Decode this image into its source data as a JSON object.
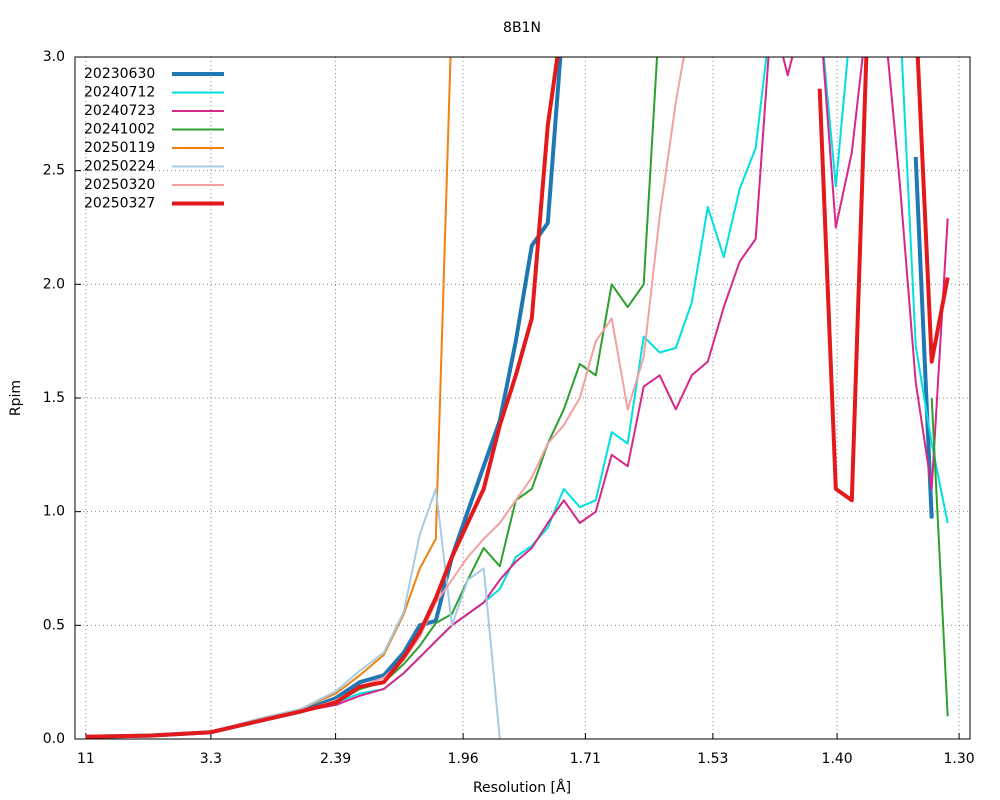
{
  "chart_data": {
    "type": "line",
    "title": "8B1N",
    "x_label": "Resolution [Å]",
    "y_label": "Rpim",
    "x": [
      0.0083,
      0.051,
      0.0918,
      0.1245,
      0.1512,
      0.1753,
      0.1913,
      0.2073,
      0.2207,
      0.2314,
      0.2421,
      0.2528,
      0.2634,
      0.2741,
      0.2848,
      0.2955,
      0.3062,
      0.3169,
      0.3276,
      0.3383,
      0.349,
      0.3596,
      0.3703,
      0.381,
      0.3917,
      0.4024,
      0.4131,
      0.4238,
      0.4345,
      0.4451,
      0.4558,
      0.4665,
      0.4772,
      0.4879,
      0.4986,
      0.5093,
      0.52,
      0.5307,
      0.5413,
      0.552,
      0.5627,
      0.5734,
      0.5841
    ],
    "xlim": [
      0.001,
      0.599
    ],
    "xticks": [
      {
        "value": 0.00826,
        "label": "11"
      },
      {
        "value": 0.0918,
        "label": "3.3"
      },
      {
        "value": 0.1751,
        "label": "2.39"
      },
      {
        "value": 0.2603,
        "label": "1.96"
      },
      {
        "value": 0.342,
        "label": "1.71"
      },
      {
        "value": 0.4272,
        "label": "1.53"
      },
      {
        "value": 0.5102,
        "label": "1.40"
      },
      {
        "value": 0.5917,
        "label": "1.30"
      }
    ],
    "ylim": [
      0,
      3
    ],
    "yticks": [
      {
        "value": 0,
        "label": "0.0"
      },
      {
        "value": 0.5,
        "label": "0.5"
      },
      {
        "value": 1,
        "label": "1.0"
      },
      {
        "value": 1.5,
        "label": "1.5"
      },
      {
        "value": 2,
        "label": "2.0"
      },
      {
        "value": 2.5,
        "label": "2.5"
      },
      {
        "value": 3,
        "label": "3.0"
      }
    ],
    "grid": true,
    "legend": "top-left",
    "series": [
      {
        "name": "20230630",
        "color": "#1f77b4",
        "width": 4,
        "values": [
          0.01,
          0.015,
          0.03,
          0.08,
          0.12,
          0.18,
          0.25,
          0.28,
          0.38,
          0.5,
          0.52,
          0.8,
          1.0,
          1.2,
          1.4,
          1.75,
          2.17,
          2.27,
          3.2,
          null,
          null,
          null,
          null,
          null,
          null,
          null,
          null,
          null,
          null,
          null,
          null,
          null,
          null,
          null,
          null,
          null,
          null,
          null,
          null,
          null,
          2.56,
          0.97,
          null
        ]
      },
      {
        "name": "20240712",
        "color": "#00e0e0",
        "width": 2,
        "values": [
          0.01,
          0.015,
          0.03,
          0.08,
          0.12,
          0.16,
          0.2,
          0.22,
          0.29,
          0.36,
          0.43,
          0.5,
          0.55,
          0.6,
          0.66,
          0.8,
          0.85,
          0.93,
          1.1,
          1.02,
          1.05,
          1.35,
          1.3,
          1.77,
          1.7,
          1.72,
          1.92,
          2.34,
          2.12,
          2.42,
          2.6,
          3.2,
          3.2,
          3.2,
          3.2,
          2.43,
          3.2,
          3.2,
          3.2,
          3.2,
          1.73,
          1.3,
          0.95
        ]
      },
      {
        "name": "20240723",
        "color": "#d6278a",
        "width": 2,
        "values": [
          0.01,
          0.015,
          0.03,
          0.08,
          0.12,
          0.15,
          0.19,
          0.22,
          0.29,
          0.36,
          0.43,
          0.5,
          0.55,
          0.6,
          0.7,
          0.78,
          0.84,
          0.95,
          1.05,
          0.95,
          1.0,
          1.25,
          1.2,
          1.55,
          1.6,
          1.45,
          1.6,
          1.66,
          1.9,
          2.1,
          2.2,
          3.2,
          2.92,
          3.2,
          3.2,
          2.25,
          2.58,
          3.2,
          3.2,
          2.45,
          1.57,
          1.1,
          2.29
        ]
      },
      {
        "name": "20241002",
        "color": "#2ca02c",
        "width": 2,
        "values": [
          0.01,
          0.015,
          0.03,
          0.08,
          0.12,
          0.16,
          0.22,
          0.25,
          0.33,
          0.41,
          0.51,
          0.55,
          0.7,
          0.84,
          0.76,
          1.05,
          1.1,
          1.3,
          1.45,
          1.65,
          1.6,
          2.0,
          1.9,
          2.0,
          3.2,
          null,
          null,
          null,
          null,
          null,
          null,
          null,
          null,
          null,
          null,
          null,
          null,
          null,
          null,
          null,
          null,
          1.5,
          0.1
        ]
      },
      {
        "name": "20250119",
        "color": "#f0820f",
        "width": 2,
        "values": [
          0.01,
          0.015,
          0.03,
          0.09,
          0.13,
          0.2,
          0.28,
          0.37,
          0.55,
          0.75,
          0.88,
          3.2,
          null,
          null,
          null,
          null,
          null,
          null,
          null,
          null,
          null,
          null,
          null,
          null,
          null,
          null,
          null,
          null,
          null,
          null,
          null,
          null,
          null,
          null,
          null,
          null,
          null,
          null,
          null,
          null,
          null,
          null,
          null
        ]
      },
      {
        "name": "20250224",
        "color": "#a6cbe3",
        "width": 2,
        "values": [
          0.01,
          0.015,
          0.03,
          0.09,
          0.13,
          0.21,
          0.3,
          0.38,
          0.56,
          0.9,
          1.1,
          0.5,
          0.7,
          0.75,
          0.0,
          null,
          null,
          null,
          null,
          null,
          null,
          null,
          null,
          null,
          null,
          null,
          null,
          null,
          null,
          null,
          null,
          null,
          null,
          null,
          null,
          null,
          null,
          null,
          null,
          null,
          null,
          null,
          null
        ]
      },
      {
        "name": "20250320",
        "color": "#f4a0a0",
        "width": 2,
        "values": [
          0.01,
          0.015,
          0.03,
          0.08,
          0.12,
          0.17,
          0.23,
          0.27,
          0.35,
          0.45,
          0.6,
          0.7,
          0.8,
          0.88,
          0.95,
          1.05,
          1.15,
          1.3,
          1.38,
          1.5,
          1.75,
          1.85,
          1.45,
          1.68,
          2.3,
          2.8,
          3.2,
          null,
          null,
          null,
          null,
          null,
          null,
          null,
          null,
          null,
          null,
          null,
          null,
          null,
          null,
          null,
          null
        ]
      },
      {
        "name": "20250327",
        "color": "#e31a1c",
        "width": 4,
        "values": [
          0.01,
          0.015,
          0.03,
          0.08,
          0.12,
          0.16,
          0.23,
          0.25,
          0.36,
          0.47,
          0.62,
          0.8,
          0.95,
          1.1,
          1.38,
          1.6,
          1.85,
          2.7,
          3.2,
          null,
          null,
          null,
          null,
          null,
          null,
          null,
          null,
          null,
          null,
          null,
          null,
          null,
          null,
          null,
          2.86,
          1.1,
          1.05,
          3.2,
          3.2,
          3.2,
          3.2,
          1.66,
          2.03
        ]
      }
    ]
  }
}
